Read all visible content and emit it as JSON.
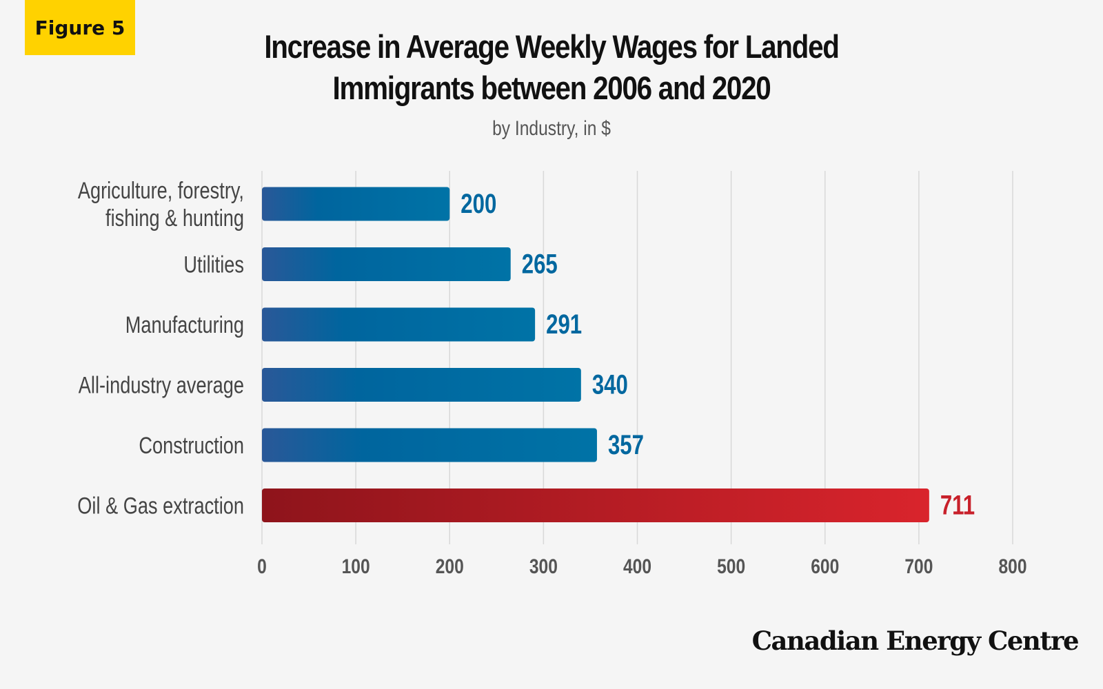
{
  "badge": {
    "label": "Figure 5"
  },
  "chart_data": {
    "type": "bar",
    "orientation": "horizontal",
    "title": [
      "Increase in Average Weekly Wages for Landed",
      "Immigrants between 2006 and 2020"
    ],
    "subtitle": "by Industry, in $",
    "categories": [
      [
        "Agriculture, forestry,",
        "fishing & hunting"
      ],
      [
        "Utilities"
      ],
      [
        "Manufacturing"
      ],
      [
        "All-industry average"
      ],
      [
        "Construction"
      ],
      [
        "Oil & Gas extraction"
      ]
    ],
    "values": [
      200,
      265,
      291,
      340,
      357,
      711
    ],
    "data_labels": [
      "200",
      "265",
      "291",
      "340",
      "357",
      "711"
    ],
    "highlight_index": 5,
    "xlim": [
      0,
      800
    ],
    "xticks": [
      0,
      100,
      200,
      300,
      400,
      500,
      600,
      700,
      800
    ],
    "grid": "vertical",
    "colors": {
      "bar_start": "#2a5898",
      "bar_mid": "#00659e",
      "bar_end": "#0073a6",
      "label": "#00679f",
      "highlight_start": "#8e141b",
      "highlight_end": "#d9242c",
      "highlight_label": "#c8202a",
      "grid": "#d8d8d8",
      "tick": "#555555",
      "category": "#444444"
    }
  },
  "brand": {
    "name": "Canadian Energy Centre"
  }
}
